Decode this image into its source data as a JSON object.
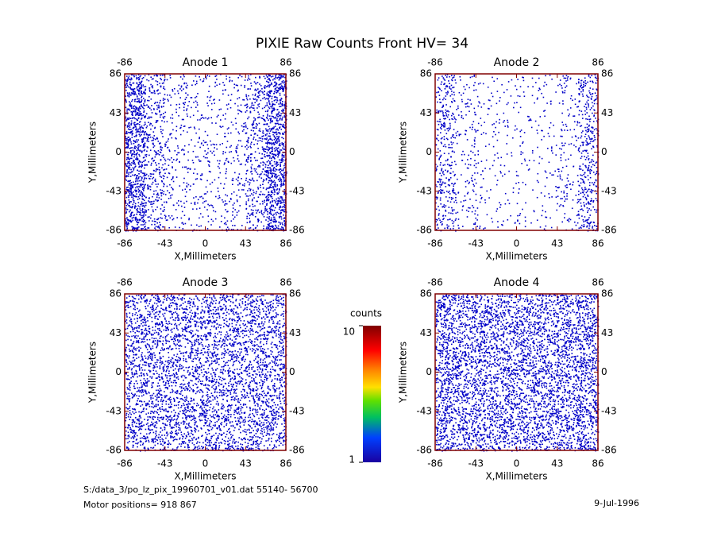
{
  "chart_data": [
    {
      "type": "dot-density",
      "title": "Anode 1",
      "x_label": "X,Millimeters",
      "y_label": "Y,Millimeters",
      "xlim": [
        -86,
        86
      ],
      "ylim": [
        -86,
        86
      ],
      "xticks": [
        -86,
        -43,
        0,
        43,
        86
      ],
      "yticks": [
        -86,
        -43,
        0,
        43,
        86
      ],
      "xticks_top": [
        -86,
        86
      ],
      "dot_color": "#0000c8",
      "density": [
        [
          220,
          90,
          40,
          35,
          35,
          40,
          90,
          220
        ],
        [
          220,
          90,
          40,
          35,
          35,
          40,
          90,
          220
        ],
        [
          220,
          90,
          40,
          35,
          35,
          40,
          90,
          220
        ],
        [
          220,
          90,
          40,
          35,
          35,
          40,
          90,
          220
        ]
      ]
    },
    {
      "type": "dot-density",
      "title": "Anode 2",
      "x_label": "X,Millimeters",
      "y_label": "Y,Millimeters",
      "xlim": [
        -86,
        86
      ],
      "ylim": [
        -86,
        86
      ],
      "xticks": [
        -86,
        -43,
        0,
        43,
        86
      ],
      "yticks": [
        -86,
        -43,
        0,
        43,
        86
      ],
      "xticks_top": [
        -86,
        86
      ],
      "dot_color": "#0000c8",
      "density": [
        [
          90,
          35,
          20,
          18,
          18,
          20,
          35,
          100
        ],
        [
          90,
          35,
          20,
          18,
          18,
          20,
          35,
          100
        ],
        [
          90,
          35,
          20,
          18,
          18,
          20,
          35,
          100
        ],
        [
          90,
          35,
          20,
          18,
          18,
          20,
          35,
          100
        ]
      ]
    },
    {
      "type": "dot-density",
      "title": "Anode 3",
      "x_label": "X,Millimeters",
      "y_label": "Y,Millimeters",
      "xlim": [
        -86,
        86
      ],
      "ylim": [
        -86,
        86
      ],
      "xticks": [
        -86,
        -43,
        0,
        43,
        86
      ],
      "yticks": [
        -86,
        -43,
        0,
        43,
        86
      ],
      "xticks_top": [
        -86,
        86
      ],
      "dot_color": "#0000c8",
      "density": [
        [
          130,
          130,
          130,
          130,
          130,
          130,
          130,
          130
        ],
        [
          130,
          130,
          130,
          130,
          130,
          130,
          130,
          130
        ],
        [
          130,
          130,
          130,
          130,
          130,
          130,
          130,
          130
        ],
        [
          130,
          130,
          130,
          130,
          130,
          130,
          130,
          130
        ]
      ]
    },
    {
      "type": "dot-density",
      "title": "Anode 4",
      "x_label": "X,Millimeters",
      "y_label": "Y,Millimeters",
      "xlim": [
        -86,
        86
      ],
      "ylim": [
        -86,
        86
      ],
      "xticks": [
        -86,
        -43,
        0,
        43,
        86
      ],
      "yticks": [
        -86,
        -43,
        0,
        43,
        86
      ],
      "xticks_top": [
        -86,
        86
      ],
      "dot_color": "#0000c8",
      "density": [
        [
          170,
          150,
          150,
          150,
          150,
          150,
          150,
          170
        ],
        [
          170,
          150,
          150,
          150,
          150,
          150,
          150,
          170
        ],
        [
          170,
          150,
          150,
          150,
          150,
          150,
          150,
          170
        ],
        [
          170,
          150,
          150,
          150,
          150,
          150,
          150,
          170
        ]
      ]
    }
  ],
  "title": "PIXIE Raw Counts Front HV= 34",
  "colorbar": {
    "title": "counts",
    "ylim": [
      1,
      10
    ],
    "yticks": [
      1,
      10
    ]
  },
  "footer": {
    "file": "S:/data_3/po_lz_pix_19960701_v01.dat   55140- 56700",
    "motor": "Motor positions= 918 867",
    "date": "9-Jul-1996"
  }
}
